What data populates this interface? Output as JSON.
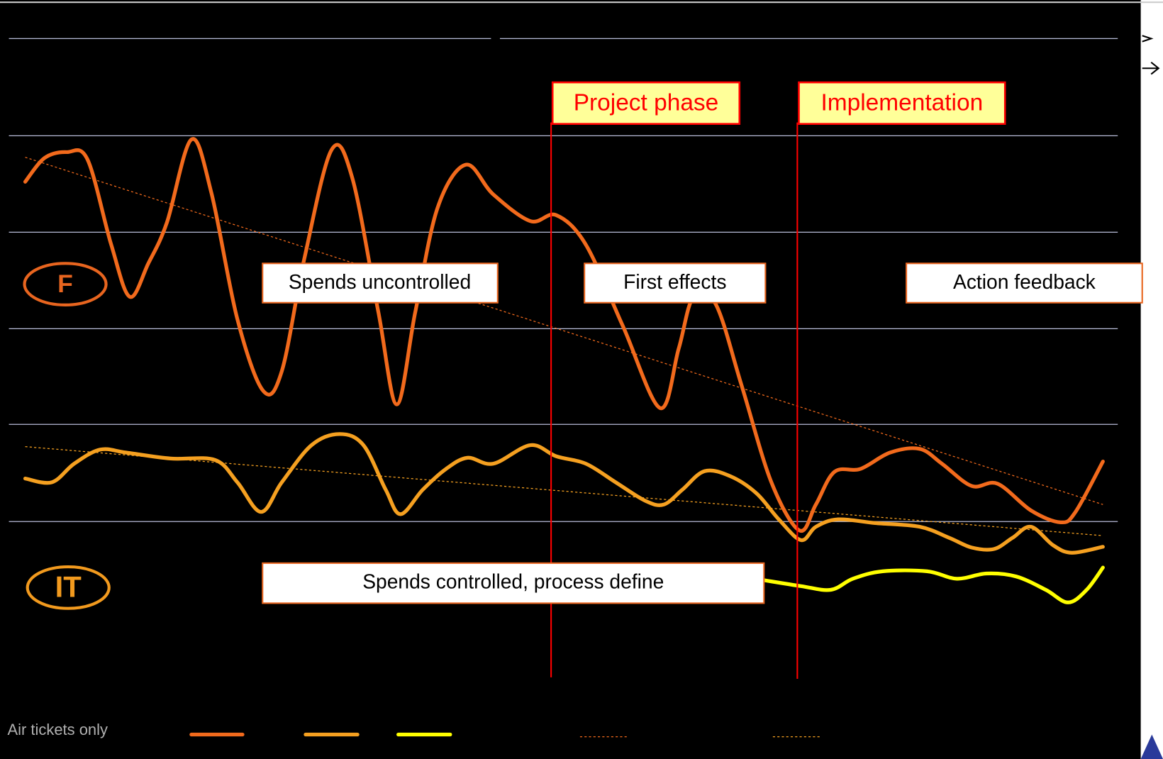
{
  "phases": [
    "Project phase",
    "Implementation"
  ],
  "groups": [
    "F",
    "IT"
  ],
  "notes": [
    "Spends uncontrolled",
    "First effects",
    "Action feedback",
    "Spends controlled, process define"
  ],
  "footnote": "Air tickets only"
}
